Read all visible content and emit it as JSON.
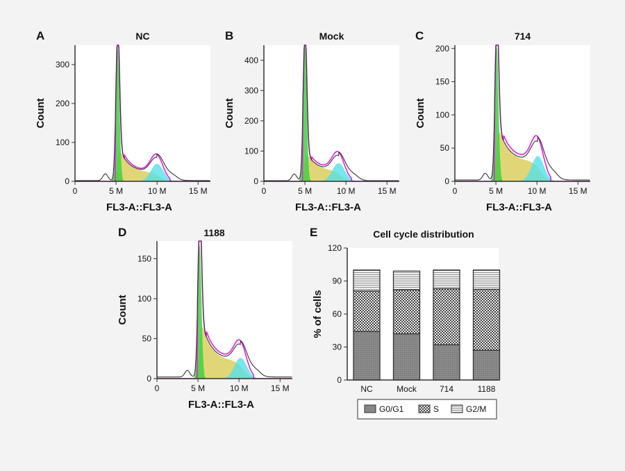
{
  "chart_data": [
    {
      "panel": "A",
      "type": "area",
      "title": "NC",
      "xlabel": "FL3-A::FL3-A",
      "ylabel": "Count",
      "xlim": [
        0,
        16.5
      ],
      "ylim": [
        0,
        350
      ],
      "xticks": [
        "0",
        "5 M",
        "10 M",
        "15 M"
      ],
      "xtick_values": [
        0,
        5,
        10,
        15
      ],
      "yticks": [
        "0",
        "100",
        "200",
        "300"
      ],
      "ytick_values": [
        0,
        100,
        200,
        300
      ],
      "g1_peak": {
        "x": 5.2,
        "count": 345
      },
      "g2_peak": {
        "x": 10.0,
        "count": 45
      },
      "s_start": 100,
      "s_end": 22,
      "model_g2_max": 60
    },
    {
      "panel": "B",
      "type": "area",
      "title": "Mock",
      "xlabel": "FL3-A::FL3-A",
      "ylabel": "Count",
      "xlim": [
        0,
        16.5
      ],
      "ylim": [
        0,
        450
      ],
      "xticks": [
        "0",
        "5 M",
        "10 M",
        "15 M"
      ],
      "xtick_values": [
        0,
        5,
        10,
        15
      ],
      "yticks": [
        "0",
        "100",
        "200",
        "300",
        "400"
      ],
      "ytick_values": [
        0,
        100,
        200,
        300,
        400
      ],
      "g1_peak": {
        "x": 5.0,
        "count": 445
      },
      "g2_peak": {
        "x": 9.1,
        "count": 60
      },
      "s_start": 110,
      "s_end": 35,
      "model_g2_max": 75
    },
    {
      "panel": "C",
      "type": "area",
      "title": "714",
      "xlabel": "FL3-A::FL3-A",
      "ylabel": "Count",
      "xlim": [
        0,
        16.5
      ],
      "ylim": [
        0,
        205
      ],
      "xticks": [
        "0",
        "5 M",
        "10 M",
        "15 M"
      ],
      "xtick_values": [
        0,
        5,
        10,
        15
      ],
      "yticks": [
        "0",
        "50",
        "100",
        "150",
        "200"
      ],
      "ytick_values": [
        0,
        50,
        100,
        150,
        200
      ],
      "g1_peak": {
        "x": 5.1,
        "count": 203
      },
      "g2_peak": {
        "x": 10.1,
        "count": 38
      },
      "s_start": 95,
      "s_end": 30,
      "model_g2_max": 55
    },
    {
      "panel": "D",
      "type": "area",
      "title": "1188",
      "xlabel": "FL3-A::FL3-A",
      "ylabel": "Count",
      "xlim": [
        0,
        16.5
      ],
      "ylim": [
        0,
        172
      ],
      "xticks": [
        "0",
        "5 M",
        "10 M",
        "15 M"
      ],
      "xtick_values": [
        0,
        5,
        10,
        15
      ],
      "yticks": [
        "0",
        "50",
        "100",
        "150"
      ],
      "ytick_values": [
        0,
        50,
        100,
        150
      ],
      "g1_peak": {
        "x": 5.2,
        "count": 168
      },
      "g2_peak": {
        "x": 10.2,
        "count": 26
      },
      "s_start": 85,
      "s_end": 22,
      "model_g2_max": 37
    },
    {
      "panel": "E",
      "type": "bar",
      "stacked": true,
      "title": "Cell  cycle distribution",
      "xlabel": "",
      "ylabel": "% of cells",
      "ylim": [
        0,
        120
      ],
      "yticks": [
        "0",
        "30",
        "60",
        "90",
        "120"
      ],
      "ytick_values": [
        0,
        30,
        60,
        90,
        120
      ],
      "categories": [
        "NC",
        "Mock",
        "714",
        "1188"
      ],
      "series": [
        {
          "name": "G0/G1",
          "values": [
            44,
            42,
            32,
            27
          ]
        },
        {
          "name": "S",
          "values": [
            37,
            40,
            51,
            55.5
          ]
        },
        {
          "name": "G2/M",
          "values": [
            19,
            17,
            17,
            17.5
          ]
        }
      ],
      "legend": "bottom"
    }
  ],
  "colors": {
    "g1": "#3fcf3f",
    "s": "#d8cc55",
    "g2": "#55e0e8",
    "model": "#e020e0",
    "data": "#333333"
  }
}
